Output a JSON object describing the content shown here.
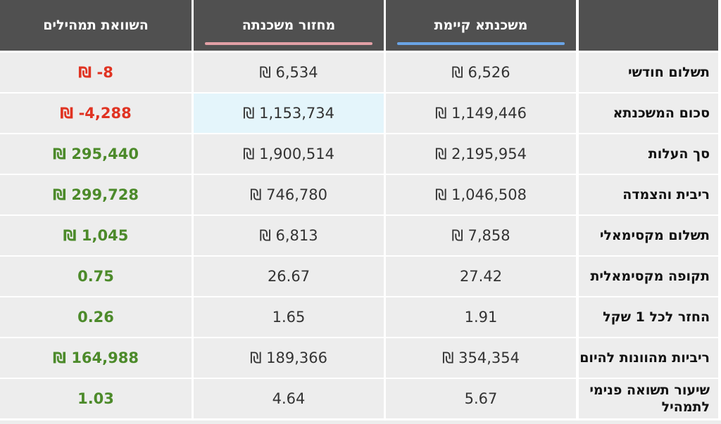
{
  "header": {
    "label_col": "",
    "existing": "משכנתא קיימת",
    "refinance": "מחזור משכנתה",
    "comparison": "השוואת תמהילים",
    "existing_underline_color": "#6aa4e6",
    "refinance_underline_color": "#e3a0a6"
  },
  "colors": {
    "negative": "#e03322",
    "positive": "#4c8a2a",
    "highlight": "#e4f5fb"
  },
  "rows": [
    {
      "label": "תשלום חודשי",
      "existing": "₪ 6,526",
      "refinance": "₪ 6,534",
      "comparison": "₪ -8",
      "tone": "negative"
    },
    {
      "label": "סכום המשכנתא",
      "existing": "₪ 1,149,446",
      "refinance": "₪ 1,153,734",
      "comparison": "₪ -4,288",
      "tone": "negative"
    },
    {
      "label": "סך העלות",
      "existing": "₪ 2,195,954",
      "refinance": "₪ 1,900,514",
      "comparison": "₪ 295,440",
      "tone": "positive"
    },
    {
      "label": "ריבית והצמדה",
      "existing": "₪ 1,046,508",
      "refinance": "₪ 746,780",
      "comparison": "₪ 299,728",
      "tone": "positive"
    },
    {
      "label": "תשלום מקסימאלי",
      "existing": "₪ 7,858",
      "refinance": "₪ 6,813",
      "comparison": "₪ 1,045",
      "tone": "positive"
    },
    {
      "label": "תקופה מקסימאלית",
      "existing": "27.42",
      "refinance": "26.67",
      "comparison": "0.75",
      "tone": "positive"
    },
    {
      "label": "החזר לכל 1 שקל",
      "existing": "1.91",
      "refinance": "1.65",
      "comparison": "0.26",
      "tone": "positive"
    },
    {
      "label": "ריביות מהוונות להיום",
      "existing": "₪ 354,354",
      "refinance": "₪ 189,366",
      "comparison": "₪ 164,988",
      "tone": "positive"
    },
    {
      "label": "שיעור תשואה פנימי לתמהיל",
      "existing": "5.67",
      "refinance": "4.64",
      "comparison": "1.03",
      "tone": "positive"
    }
  ]
}
